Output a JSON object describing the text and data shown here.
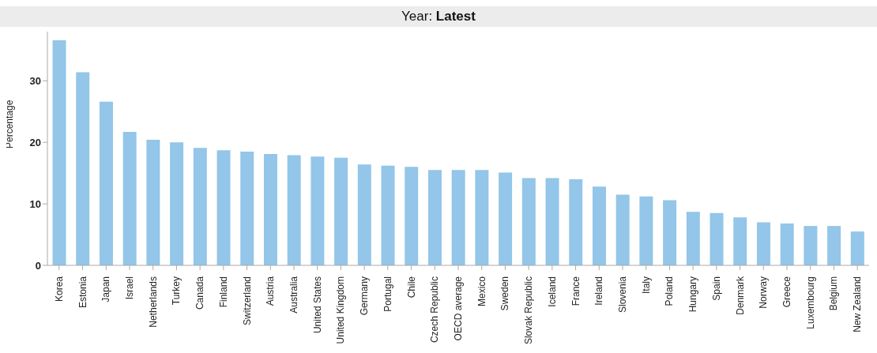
{
  "chart_data": {
    "type": "bar",
    "title": "Year: Latest",
    "ylabel": "Percentage",
    "categories": [
      "Korea",
      "Estonia",
      "Japan",
      "Israel",
      "Netherlands",
      "Turkey",
      "Canada",
      "Finland",
      "Switzerland",
      "Austria",
      "Australia",
      "United States",
      "United Kingdom",
      "Germany",
      "Portugal",
      "Chile",
      "Czech Republic",
      "OECD average",
      "Mexico",
      "Sweden",
      "Slovak Republic",
      "Iceland",
      "France",
      "Ireland",
      "Slovenia",
      "Italy",
      "Poland",
      "Hungary",
      "Spain",
      "Denmark",
      "Norway",
      "Greece",
      "Luxembourg",
      "Belgium",
      "New Zealand"
    ],
    "values": [
      36.6,
      31.4,
      26.6,
      21.7,
      20.4,
      20.0,
      19.1,
      18.7,
      18.5,
      18.1,
      17.9,
      17.7,
      17.5,
      16.4,
      16.2,
      16.0,
      15.5,
      15.5,
      15.5,
      15.1,
      14.2,
      14.2,
      14.0,
      12.8,
      11.5,
      11.2,
      10.6,
      8.7,
      8.5,
      7.8,
      7.0,
      6.8,
      6.4,
      6.4,
      5.5
    ],
    "color": "#93c6e8",
    "ylim": [
      0,
      38
    ],
    "yticks": [
      0,
      10,
      20,
      30
    ],
    "grid": false,
    "legend": false
  }
}
